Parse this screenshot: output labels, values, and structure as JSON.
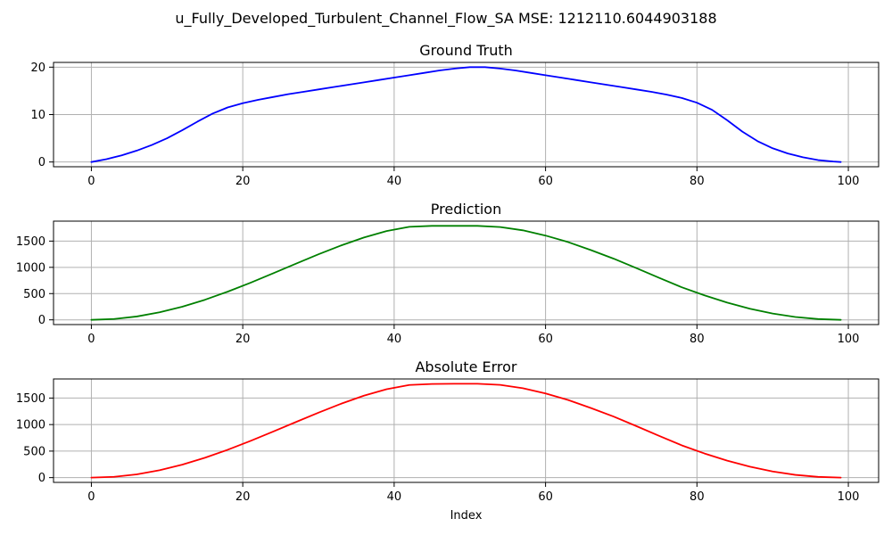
{
  "figure": {
    "suptitle": "u_Fully_Developed_Turbulent_Channel_Flow_SA MSE: 1212110.6044903188"
  },
  "chart_data": [
    {
      "type": "line",
      "title": "Ground Truth",
      "xlabel": "",
      "ylabel": "",
      "xlim": [
        -5,
        104
      ],
      "ylim": [
        -1,
        21
      ],
      "xticks": [
        0,
        20,
        40,
        60,
        80,
        100
      ],
      "yticks": [
        0,
        10,
        20
      ],
      "grid": true,
      "series": [
        {
          "color": "#0000ff",
          "x": [
            0,
            2,
            4,
            6,
            8,
            10,
            12,
            14,
            16,
            18,
            20,
            22,
            24,
            26,
            28,
            30,
            32,
            34,
            36,
            38,
            40,
            42,
            44,
            46,
            48,
            50,
            52,
            54,
            56,
            58,
            60,
            62,
            64,
            66,
            68,
            70,
            72,
            74,
            76,
            78,
            80,
            82,
            84,
            86,
            88,
            90,
            92,
            94,
            96,
            98,
            99
          ],
          "values": [
            0,
            0.6,
            1.4,
            2.4,
            3.6,
            5.0,
            6.7,
            8.5,
            10.2,
            11.5,
            12.4,
            13.1,
            13.7,
            14.3,
            14.8,
            15.3,
            15.8,
            16.3,
            16.8,
            17.3,
            17.8,
            18.3,
            18.8,
            19.3,
            19.7,
            20.0,
            20.0,
            19.7,
            19.3,
            18.8,
            18.3,
            17.8,
            17.3,
            16.8,
            16.3,
            15.8,
            15.3,
            14.8,
            14.2,
            13.5,
            12.5,
            11.0,
            8.8,
            6.4,
            4.4,
            2.9,
            1.8,
            1.0,
            0.4,
            0.1,
            0
          ]
        }
      ]
    },
    {
      "type": "line",
      "title": "Prediction",
      "xlabel": "",
      "ylabel": "",
      "xlim": [
        -5,
        104
      ],
      "ylim": [
        -90,
        1880
      ],
      "xticks": [
        0,
        20,
        40,
        60,
        80,
        100
      ],
      "yticks": [
        0,
        500,
        1000,
        1500
      ],
      "grid": true,
      "series": [
        {
          "color": "#008000",
          "x": [
            0,
            3,
            6,
            9,
            12,
            15,
            18,
            21,
            24,
            27,
            30,
            33,
            36,
            39,
            42,
            45,
            48,
            49,
            51,
            54,
            57,
            60,
            63,
            66,
            69,
            72,
            75,
            78,
            81,
            84,
            87,
            90,
            93,
            96,
            99
          ],
          "values": [
            0,
            16,
            64,
            143,
            250,
            382,
            536,
            705,
            885,
            1068,
            1248,
            1417,
            1568,
            1691,
            1772,
            1790,
            1790,
            1790,
            1790,
            1768,
            1705,
            1605,
            1480,
            1328,
            1165,
            985,
            800,
            620,
            466,
            328,
            212,
            120,
            54,
            15,
            0
          ]
        }
      ]
    },
    {
      "type": "line",
      "title": "Absolute Error",
      "xlabel": "Index",
      "ylabel": "",
      "xlim": [
        -5,
        104
      ],
      "ylim": [
        -90,
        1860
      ],
      "xticks": [
        0,
        20,
        40,
        60,
        80,
        100
      ],
      "yticks": [
        0,
        500,
        1000,
        1500
      ],
      "grid": true,
      "series": [
        {
          "color": "#ff0000",
          "x": [
            0,
            3,
            6,
            9,
            12,
            15,
            18,
            21,
            24,
            27,
            30,
            33,
            36,
            39,
            42,
            45,
            48,
            49,
            51,
            54,
            57,
            60,
            63,
            66,
            69,
            72,
            75,
            78,
            81,
            84,
            87,
            90,
            93,
            96,
            99
          ],
          "values": [
            0,
            15,
            62,
            139,
            244,
            374,
            525,
            691,
            867,
            1047,
            1225,
            1393,
            1545,
            1667,
            1747,
            1766,
            1770,
            1770,
            1770,
            1748,
            1686,
            1587,
            1463,
            1312,
            1151,
            971,
            787,
            608,
            455,
            319,
            206,
            116,
            52,
            14,
            0
          ]
        }
      ]
    }
  ]
}
